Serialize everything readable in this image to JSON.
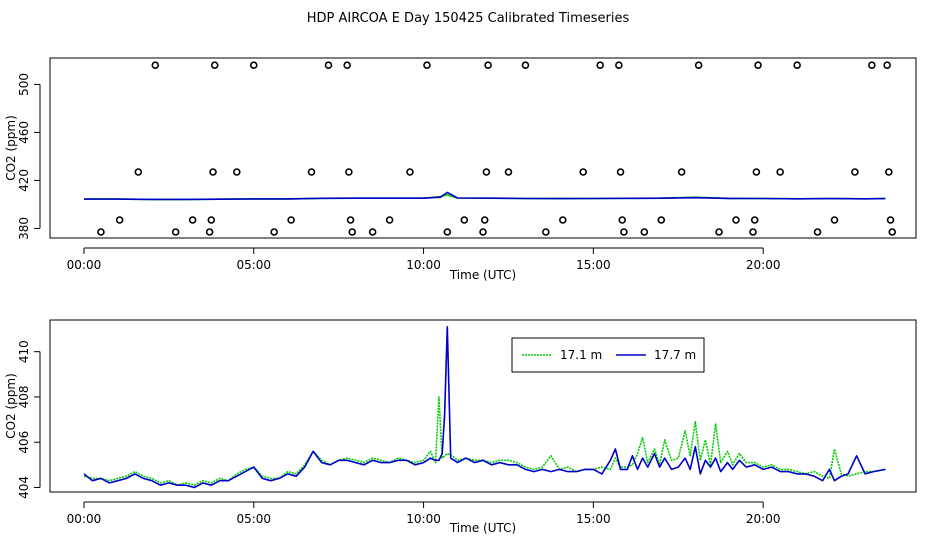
{
  "figure": {
    "title": "HDP AIRCOA E  Day 150425  Calibrated Timeseries"
  },
  "chart_data": [
    {
      "type": "scatter",
      "xlabel": "Time (UTC)",
      "ylabel": "CO2 (ppm)",
      "xlim": [
        -1.0,
        24.5
      ],
      "ylim": [
        372,
        522
      ],
      "x_ticks": [
        0,
        5,
        10,
        15,
        20
      ],
      "x_tick_labels": [
        "00:00",
        "05:00",
        "10:00",
        "15:00",
        "20:00"
      ],
      "y_ticks": [
        380,
        420,
        460,
        500
      ],
      "y_tick_labels": [
        "380",
        "420",
        "460",
        "500"
      ],
      "grid": false,
      "colors": {
        "line_a": "#00cc00",
        "line_b": "#0000cc",
        "points": "#000000"
      },
      "points": {
        "marker": "open-circle",
        "values": [
          {
            "x": 0.5,
            "y": 377
          },
          {
            "x": 1.05,
            "y": 387
          },
          {
            "x": 1.6,
            "y": 427
          },
          {
            "x": 2.1,
            "y": 516
          },
          {
            "x": 2.7,
            "y": 377
          },
          {
            "x": 3.2,
            "y": 387
          },
          {
            "x": 3.7,
            "y": 377
          },
          {
            "x": 3.75,
            "y": 387
          },
          {
            "x": 3.8,
            "y": 427
          },
          {
            "x": 3.85,
            "y": 516
          },
          {
            "x": 4.5,
            "y": 427
          },
          {
            "x": 5.0,
            "y": 516
          },
          {
            "x": 5.6,
            "y": 377
          },
          {
            "x": 6.1,
            "y": 387
          },
          {
            "x": 6.7,
            "y": 427
          },
          {
            "x": 7.2,
            "y": 516
          },
          {
            "x": 7.75,
            "y": 516
          },
          {
            "x": 7.8,
            "y": 427
          },
          {
            "x": 7.85,
            "y": 387
          },
          {
            "x": 7.9,
            "y": 377
          },
          {
            "x": 8.5,
            "y": 377
          },
          {
            "x": 9.0,
            "y": 387
          },
          {
            "x": 9.6,
            "y": 427
          },
          {
            "x": 10.1,
            "y": 516
          },
          {
            "x": 10.7,
            "y": 377
          },
          {
            "x": 11.2,
            "y": 387
          },
          {
            "x": 11.75,
            "y": 377
          },
          {
            "x": 11.8,
            "y": 387
          },
          {
            "x": 11.85,
            "y": 427
          },
          {
            "x": 11.9,
            "y": 516
          },
          {
            "x": 12.5,
            "y": 427
          },
          {
            "x": 13.0,
            "y": 516
          },
          {
            "x": 13.6,
            "y": 377
          },
          {
            "x": 14.1,
            "y": 387
          },
          {
            "x": 14.7,
            "y": 427
          },
          {
            "x": 15.2,
            "y": 516
          },
          {
            "x": 15.75,
            "y": 516
          },
          {
            "x": 15.8,
            "y": 427
          },
          {
            "x": 15.85,
            "y": 387
          },
          {
            "x": 15.9,
            "y": 377
          },
          {
            "x": 16.5,
            "y": 377
          },
          {
            "x": 17.0,
            "y": 387
          },
          {
            "x": 17.6,
            "y": 427
          },
          {
            "x": 18.1,
            "y": 516
          },
          {
            "x": 18.7,
            "y": 377
          },
          {
            "x": 19.2,
            "y": 387
          },
          {
            "x": 19.7,
            "y": 377
          },
          {
            "x": 19.75,
            "y": 387
          },
          {
            "x": 19.8,
            "y": 427
          },
          {
            "x": 19.85,
            "y": 516
          },
          {
            "x": 20.5,
            "y": 427
          },
          {
            "x": 21.0,
            "y": 516
          },
          {
            "x": 21.6,
            "y": 377
          },
          {
            "x": 22.1,
            "y": 387
          },
          {
            "x": 22.7,
            "y": 427
          },
          {
            "x": 23.2,
            "y": 516
          },
          {
            "x": 23.65,
            "y": 516
          },
          {
            "x": 23.7,
            "y": 427
          },
          {
            "x": 23.75,
            "y": 387
          },
          {
            "x": 23.8,
            "y": 377
          }
        ]
      },
      "series": [
        {
          "color": "#00cc00",
          "x": [
            0,
            1,
            2,
            3,
            4,
            5,
            6,
            7,
            8,
            9,
            10,
            10.5,
            10.7,
            11,
            12,
            13,
            14,
            15,
            16,
            17,
            18,
            19,
            20,
            21,
            22,
            23,
            23.6
          ],
          "y": [
            404.4,
            404.4,
            404.2,
            404.2,
            404.3,
            404.6,
            404.6,
            405.1,
            405.2,
            405.2,
            405.2,
            406.5,
            408.0,
            405.3,
            405.2,
            404.9,
            404.8,
            404.9,
            405.1,
            405.2,
            406.0,
            405.0,
            404.9,
            404.7,
            404.8,
            404.7,
            404.8
          ]
        },
        {
          "color": "#0000cc",
          "x": [
            0,
            1,
            2,
            3,
            4,
            5,
            6,
            7,
            8,
            9,
            10,
            10.5,
            10.7,
            11,
            12,
            13,
            14,
            15,
            16,
            17,
            18,
            19,
            20,
            21,
            22,
            23,
            23.6
          ],
          "y": [
            404.4,
            404.4,
            404.2,
            404.2,
            404.3,
            404.6,
            404.6,
            405.1,
            405.2,
            405.2,
            405.2,
            406.0,
            410.0,
            405.3,
            405.2,
            404.9,
            404.8,
            404.9,
            405.1,
            405.2,
            405.6,
            405.0,
            404.9,
            404.7,
            404.8,
            404.7,
            404.8
          ]
        }
      ]
    },
    {
      "type": "line",
      "xlabel": "Time (UTC)",
      "ylabel": "CO2 (ppm)",
      "xlim": [
        -1.0,
        24.5
      ],
      "ylim": [
        403.8,
        411.4
      ],
      "x_ticks": [
        0,
        5,
        10,
        15,
        20
      ],
      "x_tick_labels": [
        "00:00",
        "05:00",
        "10:00",
        "15:00",
        "20:00"
      ],
      "y_ticks": [
        404,
        406,
        408,
        410
      ],
      "y_tick_labels": [
        "404",
        "406",
        "408",
        "410"
      ],
      "grid": false,
      "legend": {
        "placement": "top-center"
      },
      "series": [
        {
          "name": "17.1 m",
          "color": "#00cc00",
          "style": "dotted",
          "x": [
            0,
            0.25,
            0.5,
            0.75,
            1.0,
            1.25,
            1.5,
            1.75,
            2.0,
            2.25,
            2.5,
            2.75,
            3.0,
            3.25,
            3.5,
            3.75,
            4.0,
            4.25,
            4.5,
            4.75,
            5.0,
            5.25,
            5.5,
            5.75,
            6.0,
            6.25,
            6.5,
            6.75,
            7.0,
            7.25,
            7.5,
            7.75,
            8.0,
            8.25,
            8.5,
            8.75,
            9.0,
            9.25,
            9.5,
            9.75,
            10.0,
            10.2,
            10.35,
            10.45,
            10.55,
            10.7,
            10.85,
            11.0,
            11.25,
            11.5,
            11.75,
            12.0,
            12.25,
            12.5,
            12.75,
            13.0,
            13.25,
            13.5,
            13.75,
            14.0,
            14.25,
            14.5,
            14.75,
            15.0,
            15.25,
            15.5,
            15.65,
            15.8,
            16.0,
            16.15,
            16.3,
            16.45,
            16.6,
            16.8,
            16.95,
            17.1,
            17.3,
            17.5,
            17.7,
            17.85,
            18.0,
            18.15,
            18.3,
            18.45,
            18.6,
            18.75,
            18.95,
            19.1,
            19.3,
            19.5,
            19.75,
            20.0,
            20.25,
            20.5,
            20.75,
            21.0,
            21.25,
            21.5,
            21.75,
            21.95,
            22.1,
            22.3,
            22.5,
            22.75,
            23.0,
            23.25,
            23.6
          ],
          "y": [
            404.5,
            404.4,
            404.4,
            404.3,
            404.4,
            404.5,
            404.7,
            404.5,
            404.4,
            404.2,
            404.3,
            404.1,
            404.2,
            404.1,
            404.3,
            404.2,
            404.4,
            404.3,
            404.6,
            404.8,
            404.9,
            404.5,
            404.4,
            404.4,
            404.7,
            404.6,
            405.0,
            405.6,
            405.2,
            405.0,
            405.2,
            405.3,
            405.2,
            405.1,
            405.3,
            405.2,
            405.1,
            405.3,
            405.2,
            405.1,
            405.2,
            405.6,
            405.1,
            408.0,
            405.3,
            405.5,
            405.4,
            405.2,
            405.3,
            405.2,
            405.2,
            405.1,
            405.2,
            405.2,
            405.1,
            404.9,
            404.8,
            404.9,
            405.4,
            404.8,
            404.9,
            404.7,
            404.8,
            404.8,
            404.9,
            404.8,
            405.3,
            404.9,
            404.9,
            405.0,
            405.5,
            406.2,
            405.1,
            405.7,
            405.0,
            406.1,
            405.2,
            405.3,
            406.5,
            405.4,
            406.9,
            405.2,
            406.1,
            405.0,
            406.8,
            405.1,
            405.6,
            405.0,
            405.5,
            405.1,
            405.1,
            404.9,
            405.0,
            404.8,
            404.8,
            404.7,
            404.6,
            404.7,
            404.5,
            404.4,
            405.7,
            404.6,
            404.5,
            404.6,
            404.7,
            404.7,
            404.8
          ]
        },
        {
          "name": "17.7 m",
          "color": "#0000cc",
          "style": "solid",
          "x": [
            0,
            0.25,
            0.5,
            0.75,
            1.0,
            1.25,
            1.5,
            1.75,
            2.0,
            2.25,
            2.5,
            2.75,
            3.0,
            3.25,
            3.5,
            3.75,
            4.0,
            4.25,
            4.5,
            4.75,
            5.0,
            5.25,
            5.5,
            5.75,
            6.0,
            6.25,
            6.5,
            6.75,
            7.0,
            7.25,
            7.5,
            7.75,
            8.0,
            8.25,
            8.5,
            8.75,
            9.0,
            9.25,
            9.5,
            9.75,
            10.0,
            10.2,
            10.35,
            10.45,
            10.55,
            10.62,
            10.7,
            10.8,
            11.0,
            11.25,
            11.5,
            11.75,
            12.0,
            12.25,
            12.5,
            12.75,
            13.0,
            13.25,
            13.5,
            13.75,
            14.0,
            14.25,
            14.5,
            14.75,
            15.0,
            15.25,
            15.5,
            15.65,
            15.8,
            16.0,
            16.15,
            16.3,
            16.45,
            16.6,
            16.8,
            16.95,
            17.1,
            17.3,
            17.5,
            17.7,
            17.85,
            18.0,
            18.15,
            18.3,
            18.45,
            18.6,
            18.75,
            18.95,
            19.1,
            19.3,
            19.5,
            19.75,
            20.0,
            20.25,
            20.5,
            20.75,
            21.0,
            21.25,
            21.5,
            21.75,
            21.95,
            22.1,
            22.3,
            22.5,
            22.75,
            23.0,
            23.25,
            23.6
          ],
          "y": [
            404.6,
            404.3,
            404.4,
            404.2,
            404.3,
            404.4,
            404.6,
            404.4,
            404.3,
            404.1,
            404.2,
            404.1,
            404.1,
            404.0,
            404.2,
            404.1,
            404.3,
            404.3,
            404.5,
            404.7,
            404.9,
            404.4,
            404.3,
            404.4,
            404.6,
            404.5,
            404.9,
            405.6,
            405.1,
            405.0,
            405.2,
            405.2,
            405.1,
            405.0,
            405.2,
            405.1,
            405.1,
            405.2,
            405.2,
            405.0,
            405.1,
            405.3,
            405.2,
            405.2,
            405.5,
            407.2,
            411.1,
            405.3,
            405.1,
            405.3,
            405.1,
            405.2,
            405.0,
            405.1,
            405.0,
            405.0,
            404.8,
            404.7,
            404.8,
            404.7,
            404.8,
            404.7,
            404.7,
            404.8,
            404.8,
            404.6,
            405.2,
            405.7,
            404.8,
            404.8,
            405.4,
            404.8,
            405.3,
            404.9,
            405.5,
            404.9,
            405.3,
            404.8,
            404.9,
            405.3,
            404.8,
            405.8,
            404.6,
            405.2,
            404.9,
            405.3,
            404.7,
            405.1,
            404.8,
            405.2,
            404.9,
            405.0,
            404.8,
            404.9,
            404.7,
            404.7,
            404.6,
            404.6,
            404.5,
            404.3,
            404.8,
            404.3,
            404.5,
            404.6,
            405.4,
            404.6,
            404.7,
            404.8
          ]
        }
      ]
    }
  ]
}
